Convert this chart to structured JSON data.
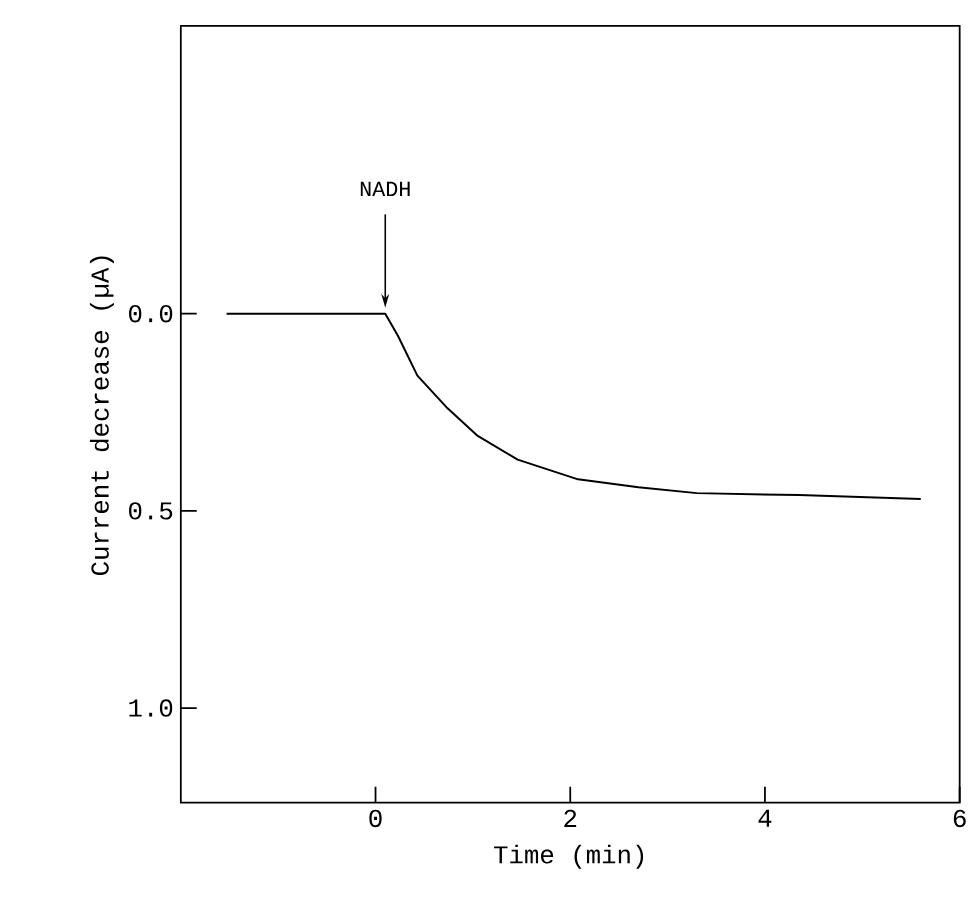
{
  "chart_data": {
    "type": "line",
    "xlabel": "Time (min)",
    "ylabel": "Current decrease (µA)",
    "x": [
      -1.53,
      0.1,
      0.23,
      0.43,
      0.74,
      1.05,
      1.46,
      2.08,
      2.7,
      3.3,
      4.35,
      5.6
    ],
    "series": [
      {
        "color": "#000000",
        "values": [
          0,
          0,
          0.056,
          0.157,
          0.24,
          0.31,
          0.37,
          0.42,
          0.44,
          0.455,
          0.46,
          0.47
        ]
      }
    ],
    "xlim": [
      -2,
      6
    ],
    "ylim": [
      1.24,
      -0.73
    ],
    "xticks": [
      0,
      2,
      4,
      6
    ],
    "yticks": [
      {
        "value": 0,
        "label": "0.0"
      },
      {
        "value": 0.5,
        "label": "0.5"
      },
      {
        "value": 1,
        "label": "1.0"
      }
    ],
    "annotations": [
      "NADH"
    ],
    "grid": false,
    "marker": "none",
    "line_style": "solid"
  }
}
